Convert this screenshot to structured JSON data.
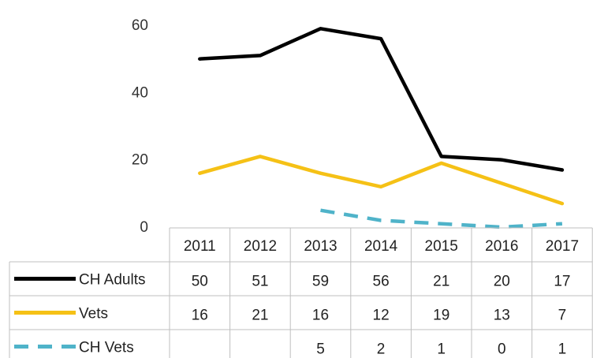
{
  "chart_data": {
    "type": "line",
    "title": "",
    "xlabel": "",
    "ylabel": "",
    "ylim": [
      0,
      60
    ],
    "yticks": [
      0,
      20,
      40,
      60
    ],
    "categories": [
      "2011",
      "2012",
      "2013",
      "2014",
      "2015",
      "2016",
      "2017"
    ],
    "grid": false,
    "legend": "data-table",
    "series": [
      {
        "name": "CH Adults",
        "values": [
          50,
          51,
          59,
          56,
          21,
          20,
          17
        ],
        "color": "#000000",
        "dash": "solid"
      },
      {
        "name": "Vets",
        "values": [
          16,
          21,
          16,
          12,
          19,
          13,
          7
        ],
        "color": "#f5c116",
        "dash": "solid"
      },
      {
        "name": "CH Vets",
        "values": [
          null,
          null,
          5,
          2,
          1,
          0,
          1
        ],
        "color": "#4fb3c9",
        "dash": "dashed"
      }
    ]
  }
}
